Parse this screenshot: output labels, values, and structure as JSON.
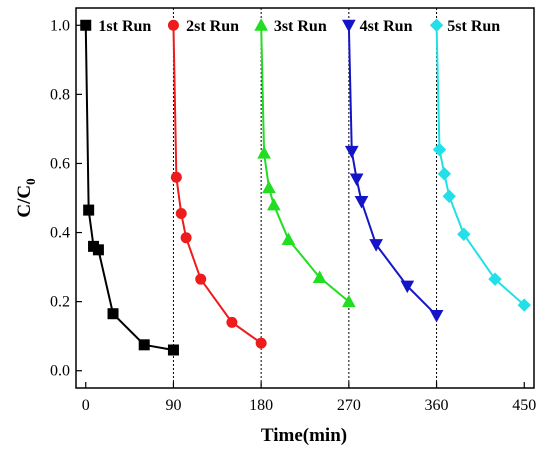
{
  "chart_data": {
    "type": "line",
    "xlabel": "Time(min)",
    "ylabel_main": "C/C",
    "ylabel_sub": "0",
    "xlim": [
      -10,
      460
    ],
    "ylim": [
      -0.05,
      1.05
    ],
    "xticks": [
      0,
      90,
      180,
      270,
      360,
      450
    ],
    "yticks": [
      0.0,
      0.2,
      0.4,
      0.6,
      0.8,
      1.0
    ],
    "ytick_labels": [
      "0.0",
      "0.2",
      "0.4",
      "0.6",
      "0.8",
      "1.0"
    ],
    "xtick_labels": [
      "0",
      "90",
      "180",
      "270",
      "360",
      "450"
    ],
    "dividers": [
      90,
      180,
      270,
      360
    ],
    "run_labels": [
      {
        "text": "1st Run",
        "x": 13
      },
      {
        "text": "2st Run",
        "x": 103
      },
      {
        "text": "3st Run",
        "x": 193
      },
      {
        "text": "4st Run",
        "x": 281
      },
      {
        "text": "5st Run",
        "x": 371
      }
    ],
    "series": [
      {
        "color": "#000000",
        "marker": "square",
        "x": [
          0,
          3,
          8,
          13,
          28,
          60,
          90
        ],
        "y": [
          1.0,
          0.465,
          0.36,
          0.35,
          0.165,
          0.075,
          0.06
        ]
      },
      {
        "color": "#ee1c1c",
        "marker": "circle",
        "x": [
          90,
          93,
          98,
          103,
          118,
          150,
          180
        ],
        "y": [
          1.0,
          0.56,
          0.455,
          0.385,
          0.265,
          0.14,
          0.08
        ]
      },
      {
        "color": "#22dd22",
        "marker": "triangle-up",
        "x": [
          180,
          183,
          188,
          193,
          208,
          240,
          270
        ],
        "y": [
          1.0,
          0.63,
          0.53,
          0.48,
          0.38,
          0.27,
          0.2
        ]
      },
      {
        "color": "#1515c8",
        "marker": "triangle-down",
        "x": [
          270,
          273,
          278,
          283,
          298,
          330,
          360
        ],
        "y": [
          1.0,
          0.635,
          0.555,
          0.49,
          0.365,
          0.245,
          0.16
        ]
      },
      {
        "color": "#22e0e8",
        "marker": "diamond",
        "x": [
          360,
          363,
          368,
          373,
          388,
          420,
          450
        ],
        "y": [
          1.0,
          0.64,
          0.57,
          0.505,
          0.395,
          0.265,
          0.19
        ]
      }
    ]
  }
}
